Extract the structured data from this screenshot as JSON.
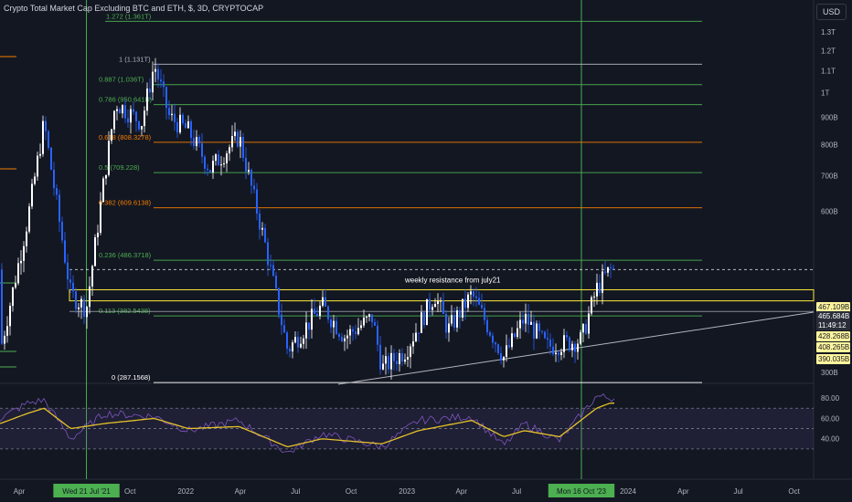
{
  "header": {
    "title": "Crypto Total Market Cap Excluding BTC and ETH, $, 3D, CRYPTOCAP",
    "currency_button": "USD"
  },
  "colors": {
    "background": "#131722",
    "up": "#ffffff",
    "down": "#2962ff",
    "fib_green": "#4caf50",
    "fib_orange": "#f57c00",
    "fib_gray": "#b2b5be",
    "resistance": "#ffeb3b",
    "rsi_line": "#7e57c2",
    "rsi_ma": "#e6c229",
    "price_tag_bg": "#fff59d",
    "price_tag_text": "#131722"
  },
  "chart_data": [
    {
      "type": "line",
      "title": "Crypto Total Market Cap Excluding BTC and ETH, $, 3D, CRYPTOCAP",
      "scale": "log",
      "currency": "USD",
      "x": [
        "2021-03-01",
        "2021-04-15",
        "2021-05-12",
        "2021-06-25",
        "2021-07-21",
        "2021-08-20",
        "2021-09-07",
        "2021-10-20",
        "2021-11-10",
        "2021-12-05",
        "2022-01-05",
        "2022-02-10",
        "2022-03-30",
        "2022-05-12",
        "2022-06-18",
        "2022-08-14",
        "2022-09-20",
        "2022-11-05",
        "2022-11-21",
        "2022-12-30",
        "2023-02-16",
        "2023-03-10",
        "2023-04-18",
        "2023-06-10",
        "2023-07-14",
        "2023-08-20",
        "2023-10-16",
        "2023-11-10",
        "2023-12-02"
      ],
      "y": [
        330,
        580,
        880,
        420,
        395,
        700,
        960,
        880,
        1131,
        900,
        850,
        720,
        830,
        520,
        330,
        400,
        350,
        380,
        305,
        330,
        420,
        360,
        420,
        320,
        380,
        335,
        345,
        430,
        467.109
      ],
      "y_ticks": [
        "1.3T",
        "1.2T",
        "1.1T",
        "1T",
        "900B",
        "800B",
        "700B",
        "600B",
        "300B"
      ],
      "x_ticks": [
        "Apr",
        "Wed 21 Jul '21",
        "Oct",
        "2022",
        "Apr",
        "Jul",
        "Oct",
        "2023",
        "Apr",
        "Jul",
        "Mon 16 Oct '23",
        "2024",
        "Apr",
        "Jul",
        "Oct"
      ],
      "fib_levels": [
        {
          "ratio": "1.272",
          "value": 1361,
          "label": "1.272 (1.361T)",
          "color": "#4caf50"
        },
        {
          "ratio": "1",
          "value": 1131,
          "label": "1 (1.131T)",
          "color": "#b2b5be"
        },
        {
          "ratio": "0.887",
          "value": 1036,
          "label": "0.887 (1.036T)",
          "color": "#4caf50"
        },
        {
          "ratio": "0.786",
          "value": 950.641,
          "label": "0.786 (950.641B)",
          "color": "#4caf50"
        },
        {
          "ratio": "0.618",
          "value": 808.3278,
          "label": "0.618 (808.3278)",
          "color": "#f57c00"
        },
        {
          "ratio": "0.5",
          "value": 709.228,
          "label": "0.5 (709.228)",
          "color": "#4caf50"
        },
        {
          "ratio": "0.382",
          "value": 609.6138,
          "label": "0.382 (609.6138)",
          "color": "#f57c00"
        },
        {
          "ratio": "0.236",
          "value": 486.3718,
          "label": "0.236 (486.3718)",
          "color": "#4caf50"
        },
        {
          "ratio": "0.113",
          "value": 382.5438,
          "label": "0.113 (382.5438)",
          "color": "#4caf50"
        },
        {
          "ratio": "0",
          "value": 287.1568,
          "label": "0 (287.1568)",
          "color": "#ffffff"
        }
      ],
      "annotation": "weekly resistance from july21",
      "price_tags": [
        {
          "value": 467.109,
          "label": "467.109B",
          "style": "yellow"
        },
        {
          "value": 465.684,
          "label": "465.684B",
          "style": "dark"
        },
        {
          "value": 465.684,
          "label": "11:49:12",
          "style": "dark"
        },
        {
          "value": 428.268,
          "label": "428.268B",
          "style": "yellow"
        },
        {
          "value": 408.265,
          "label": "408.265B",
          "style": "yellow"
        },
        {
          "value": 390.035,
          "label": "390.035B",
          "style": "yellow"
        }
      ]
    },
    {
      "type": "line",
      "y_ticks": [
        "80.00",
        "60.00",
        "40.00"
      ],
      "ylim": [
        20,
        90
      ],
      "band": [
        30,
        70
      ],
      "x": [
        "2021-03-01",
        "2021-04-15",
        "2021-05-12",
        "2021-06-25",
        "2021-08-20",
        "2021-11-10",
        "2022-01-05",
        "2022-03-30",
        "2022-06-18",
        "2022-08-14",
        "2022-11-21",
        "2023-01-20",
        "2023-04-18",
        "2023-06-10",
        "2023-07-14",
        "2023-09-10",
        "2023-11-10",
        "2023-12-02"
      ],
      "series": [
        {
          "values": [
            60,
            75,
            78,
            40,
            65,
            62,
            48,
            58,
            26,
            45,
            32,
            58,
            62,
            33,
            55,
            38,
            82,
            80
          ]
        },
        {
          "values": [
            55,
            65,
            70,
            50,
            55,
            60,
            50,
            52,
            32,
            40,
            35,
            48,
            58,
            42,
            48,
            42,
            70,
            75
          ]
        }
      ]
    }
  ]
}
